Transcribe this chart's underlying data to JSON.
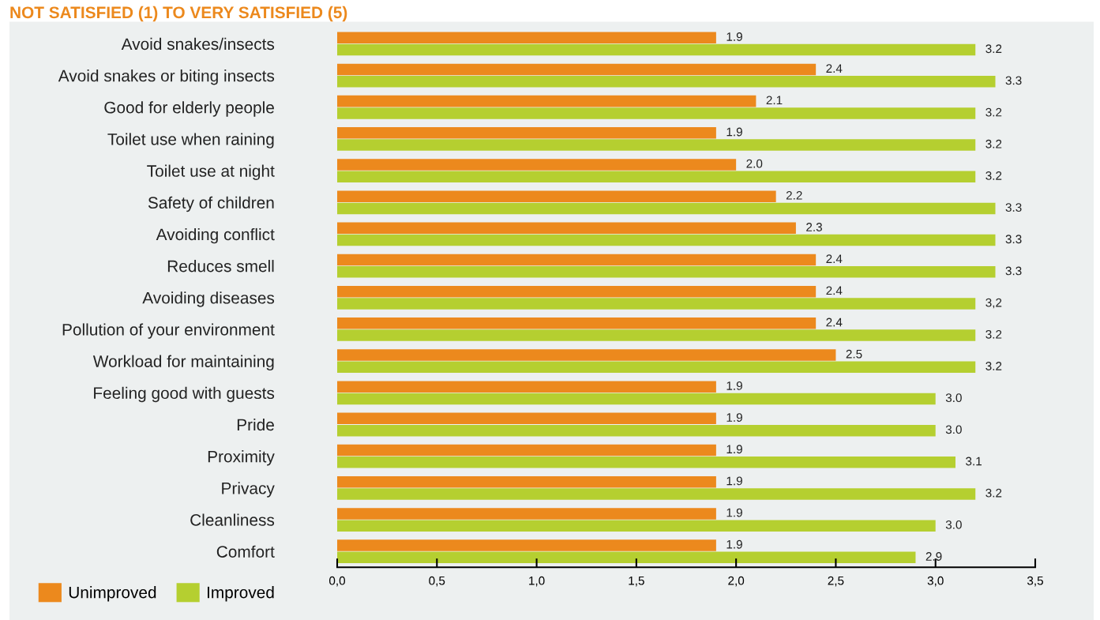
{
  "chart_data": {
    "type": "bar",
    "orientation": "horizontal",
    "title": "NOT SATISFIED (1) TO VERY SATISFIED (5)",
    "categories": [
      "Avoid snakes/insects",
      "Avoid snakes or biting insects",
      "Good for elderly people",
      "Toilet use when raining",
      "Toilet use at night",
      "Safety of children",
      "Avoiding conflict",
      "Reduces smell",
      "Avoiding diseases",
      "Pollution of your environment",
      "Workload for maintaining",
      "Feeling good with guests",
      "Pride",
      "Proximity",
      "Privacy",
      "Cleanliness",
      "Comfort"
    ],
    "series": [
      {
        "name": "Unimproved",
        "color": "#ec891d",
        "values": [
          1.9,
          2.4,
          2.1,
          1.9,
          2.0,
          2.2,
          2.3,
          2.4,
          2.4,
          2.4,
          2.5,
          1.9,
          1.9,
          1.9,
          1.9,
          1.9,
          1.9
        ],
        "value_labels": [
          "1.9",
          "2.4",
          "2.1",
          "1.9",
          "2.0",
          "2.2",
          "2.3",
          "2.4",
          "2.4",
          "2.4",
          "2.5",
          "1.9",
          "1.9",
          "1.9",
          "1.9",
          "1.9",
          "1.9"
        ]
      },
      {
        "name": "Improved",
        "color": "#b5cf30",
        "values": [
          3.2,
          3.3,
          3.2,
          3.2,
          3.2,
          3.3,
          3.3,
          3.3,
          3.2,
          3.2,
          3.2,
          3.0,
          3.0,
          3.1,
          3.2,
          3.0,
          2.9
        ],
        "value_labels": [
          "3.2",
          "3.3",
          "3.2",
          "3.2",
          "3.2",
          "3.3",
          "3.3",
          "3.3",
          "3,2",
          "3.2",
          "3.2",
          "3.0",
          "3.0",
          "3.1",
          "3.2",
          "3.0",
          "2.9"
        ]
      }
    ],
    "xlim": [
      0,
      3.5
    ],
    "xticks": [
      {
        "value": 0,
        "label": "0,0"
      },
      {
        "value": 0.5,
        "label": "0,5"
      },
      {
        "value": 1,
        "label": "1,0"
      },
      {
        "value": 1.5,
        "label": "1,5"
      },
      {
        "value": 2,
        "label": "2,0"
      },
      {
        "value": 2.5,
        "label": "2,5"
      },
      {
        "value": 3,
        "label": "3,0"
      },
      {
        "value": 3.5,
        "label": "3,5"
      }
    ],
    "grid": false,
    "legend": "bottom left"
  }
}
